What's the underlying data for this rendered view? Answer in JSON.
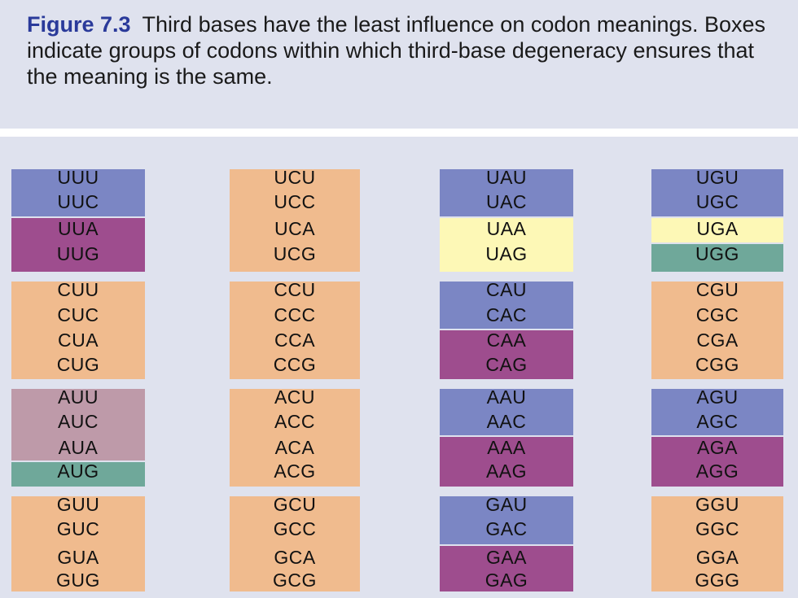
{
  "caption": {
    "label": "Figure 7.3",
    "text": "Third bases have the least influence on codon meanings. Boxes indicate groups of codons within which third-base degeneracy ensures that the meaning is the same."
  },
  "colors": {
    "blue": "#7b86c4",
    "purple": "#9e4d8e",
    "orange": "#f0bb8e",
    "yellow": "#fdf8b6",
    "teal": "#6fa89a",
    "mauve": "#be9aa9"
  },
  "columns": [
    [
      "UUU",
      "UUC",
      "UUA",
      "UUG",
      "CUU",
      "CUC",
      "CUA",
      "CUG",
      "AUU",
      "AUC",
      "AUA",
      "AUG",
      "GUU",
      "GUC",
      "GUA",
      "GUG"
    ],
    [
      "UCU",
      "UCC",
      "UCA",
      "UCG",
      "CCU",
      "CCC",
      "CCA",
      "CCG",
      "ACU",
      "ACC",
      "ACA",
      "ACG",
      "GCU",
      "GCC",
      "GCA",
      "GCG"
    ],
    [
      "UAU",
      "UAC",
      "UAA",
      "UAG",
      "CAU",
      "CAC",
      "CAA",
      "CAG",
      "AAU",
      "AAC",
      "AAA",
      "AAG",
      "GAU",
      "GAC",
      "GAA",
      "GAG"
    ],
    [
      "UGU",
      "UGC",
      "UGA",
      "UGG",
      "CGU",
      "CGC",
      "CGA",
      "CGG",
      "AGU",
      "AGC",
      "AGA",
      "AGG",
      "GGU",
      "GGC",
      "GGA",
      "GGG"
    ]
  ],
  "groups": [
    [
      {
        "color": "blue",
        "count": 2
      },
      {
        "color": "purple",
        "count": 2
      },
      {
        "color": "orange",
        "count": 4
      },
      {
        "color": "mauve",
        "count": 3
      },
      {
        "color": "teal",
        "count": 1
      },
      {
        "color": "orange",
        "count": 4
      }
    ],
    [
      {
        "color": "orange",
        "count": 4
      },
      {
        "color": "orange",
        "count": 4
      },
      {
        "color": "orange",
        "count": 4
      },
      {
        "color": "orange",
        "count": 4
      }
    ],
    [
      {
        "color": "blue",
        "count": 2
      },
      {
        "color": "yellow",
        "count": 2
      },
      {
        "color": "blue",
        "count": 2
      },
      {
        "color": "purple",
        "count": 2
      },
      {
        "color": "blue",
        "count": 2
      },
      {
        "color": "purple",
        "count": 2
      },
      {
        "color": "blue",
        "count": 2
      },
      {
        "color": "purple",
        "count": 2
      }
    ],
    [
      {
        "color": "blue",
        "count": 2
      },
      {
        "color": "yellow",
        "count": 1
      },
      {
        "color": "teal",
        "count": 1
      },
      {
        "color": "orange",
        "count": 4
      },
      {
        "color": "blue",
        "count": 2
      },
      {
        "color": "purple",
        "count": 2
      },
      {
        "color": "orange",
        "count": 4
      }
    ]
  ]
}
